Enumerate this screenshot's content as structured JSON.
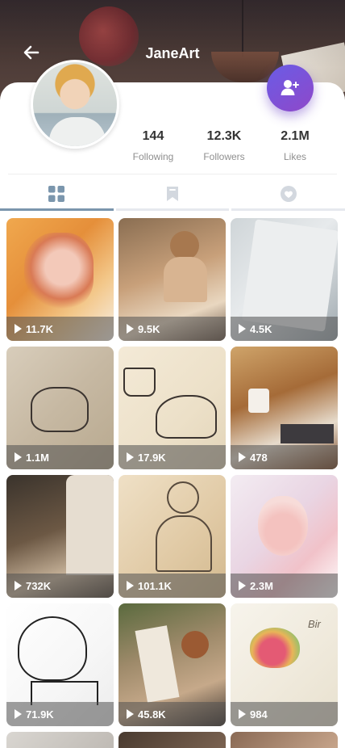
{
  "header": {
    "title": "JaneArt"
  },
  "stats": [
    {
      "value": "144",
      "label": "Following"
    },
    {
      "value": "12.3K",
      "label": "Followers"
    },
    {
      "value": "2.1M",
      "label": "Likes"
    }
  ],
  "tabs": [
    {
      "icon": "grid-icon",
      "active": true
    },
    {
      "icon": "bookmark-icon",
      "active": false
    },
    {
      "icon": "heart-icon",
      "active": false
    }
  ],
  "posts": [
    {
      "views": "11.7K"
    },
    {
      "views": "9.5K"
    },
    {
      "views": "4.5K"
    },
    {
      "views": "1.1M"
    },
    {
      "views": "17.9K"
    },
    {
      "views": "478"
    },
    {
      "views": "732K"
    },
    {
      "views": "101.1K"
    },
    {
      "views": "2.3M"
    },
    {
      "views": "71.9K"
    },
    {
      "views": "45.8K"
    },
    {
      "views": "984"
    }
  ],
  "colors": {
    "accent": "#7b5ad8",
    "active_tab": "#7b96ad",
    "inactive_icon": "#d3d8df"
  }
}
